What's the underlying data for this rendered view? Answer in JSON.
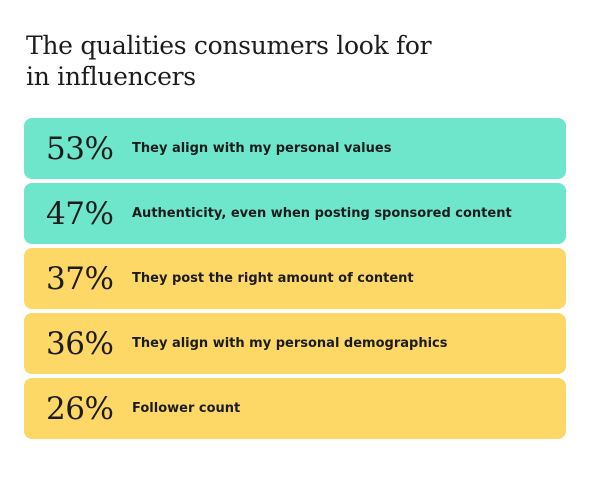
{
  "title": {
    "line1": "The qualities consumers look for",
    "line2": "in influencers"
  },
  "colors": {
    "teal": "#6ee6cc",
    "yellow": "#fdd866",
    "text": "#1c1c1c",
    "background": "#ffffff"
  },
  "chart_data": {
    "type": "bar",
    "title": "The qualities consumers look for in influencers",
    "categories": [
      "They align with my personal values",
      "Authenticity, even when posting sponsored content",
      "They post the right amount of content",
      "They align with my personal demographics",
      "Follower count"
    ],
    "values": [
      53,
      47,
      37,
      36,
      26
    ],
    "value_labels": [
      "53%",
      "47%",
      "37%",
      "36%",
      "26%"
    ],
    "bar_colors": [
      "teal",
      "teal",
      "yellow",
      "yellow",
      "yellow"
    ]
  }
}
